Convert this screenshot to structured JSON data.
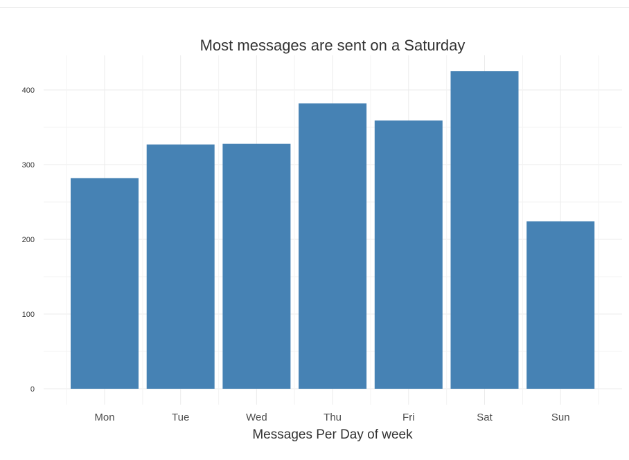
{
  "chart_data": {
    "type": "bar",
    "title": "Most messages are sent on a Saturday",
    "xlabel": "Messages Per Day of week",
    "ylabel": "",
    "categories": [
      "Mon",
      "Tue",
      "Wed",
      "Thu",
      "Fri",
      "Sat",
      "Sun"
    ],
    "values": [
      282,
      327,
      328,
      382,
      359,
      425,
      224
    ],
    "ylim": [
      0,
      445
    ],
    "yticks": [
      "0",
      "100",
      "200",
      "300",
      "400"
    ],
    "bar_color": "#4682B4",
    "grid": true,
    "legend": "none"
  }
}
